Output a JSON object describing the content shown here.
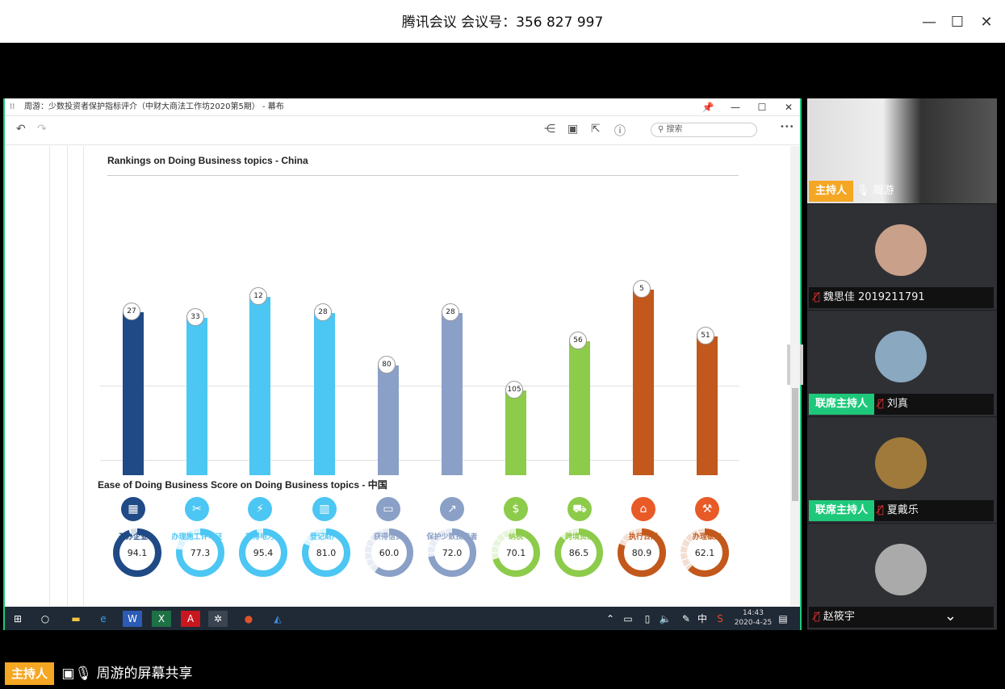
{
  "meeting": {
    "title": "腾讯会议 会议号：356 827 997",
    "minimize": "—",
    "maximize": "☐",
    "close": "✕"
  },
  "app": {
    "title": "周游：少数投资者保护指标评介（中财大商法工作坊2020第5期） - 幕布",
    "pin": "📌",
    "min": "—",
    "max": "☐",
    "close": "✕",
    "undo": "↶",
    "redo": "↷",
    "search_placeholder": "搜索",
    "more": "•••"
  },
  "doc": {
    "section1_title": "Rankings on Doing Business topics - China",
    "section2_title": "Ease of Doing Business Score on Doing Business topics - 中国"
  },
  "chart_data": [
    {
      "type": "bar",
      "title": "Rankings on Doing Business topics - China",
      "categories": [
        "开办企业",
        "办理施工许可证",
        "获得电力",
        "登记财产",
        "获得信贷",
        "保护少数投资者",
        "纳税",
        "跨境贸易",
        "执行合同",
        "办理破产"
      ],
      "values": [
        27,
        33,
        12,
        28,
        80,
        28,
        105,
        56,
        5,
        51
      ],
      "colors": [
        "#1f4a85",
        "#4cc6f3",
        "#4cc6f3",
        "#4cc6f3",
        "#8aa0c6",
        "#8aa0c6",
        "#8dcb4a",
        "#8dcb4a",
        "#c2581b",
        "#c2581b"
      ],
      "icons": [
        "building-icon",
        "tools-icon",
        "lightning-icon",
        "city-icon",
        "credit-card-icon",
        "trend-up-icon",
        "money-icon",
        "truck-icon",
        "courthouse-icon",
        "gavel-icon"
      ]
    },
    {
      "type": "pie",
      "subtype": "donut",
      "title": "Ease of Doing Business Score on Doing Business topics - 中国",
      "categories": [
        "开办企业",
        "办理施工许可证",
        "获得电力",
        "登记财产",
        "获得信贷",
        "保护少数投资者",
        "纳税",
        "跨境贸易",
        "执行合同",
        "办理破产"
      ],
      "values": [
        "94.1",
        "77.3",
        "95.4",
        "81.0",
        "60.0",
        "72.0",
        "70.1",
        "86.5",
        "80.9",
        "62.1"
      ],
      "max": 100
    }
  ],
  "taskbar": {
    "time": "14:43",
    "date": "2020-4-25",
    "ime": "中"
  },
  "participants": [
    {
      "name": "周游",
      "role": "主持人",
      "muted": false,
      "video": true
    },
    {
      "name": "魏思佳 2019211791",
      "role": "",
      "muted": true
    },
    {
      "name": "刘真",
      "role": "联席主持人",
      "muted": true
    },
    {
      "name": "夏戴乐",
      "role": "联席主持人",
      "muted": true
    },
    {
      "name": "赵筱宇",
      "role": "",
      "muted": true
    }
  ],
  "footer": {
    "role": "主持人",
    "text": "周游的屏幕共享"
  }
}
